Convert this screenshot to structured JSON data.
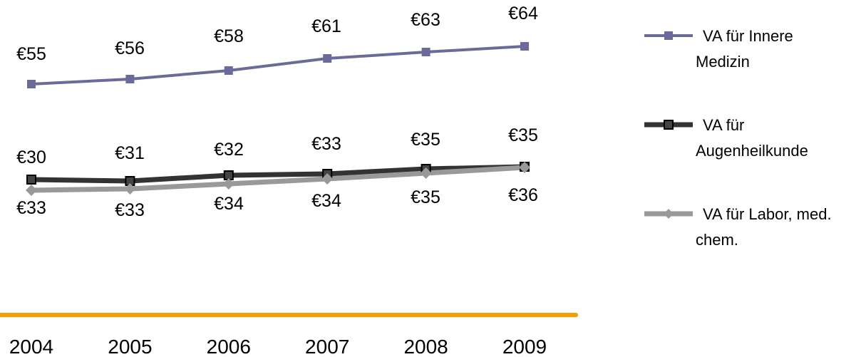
{
  "chart_data": {
    "type": "line",
    "title": "",
    "xlabel": "",
    "ylabel": "",
    "categories": [
      "2004",
      "2005",
      "2006",
      "2007",
      "2008",
      "2009"
    ],
    "currency_prefix": "€",
    "grid": false,
    "legend_position": "right",
    "ylim": [
      0,
      80
    ],
    "series": [
      {
        "name": "VA für Innere Medizin",
        "legend_lines": [
          "VA für Innere",
          "Medizin"
        ],
        "values": [
          55,
          56,
          58,
          61,
          63,
          64
        ],
        "labels": [
          "€55",
          "€56",
          "€58",
          "€61",
          "€63",
          "€64"
        ],
        "label_side": "above",
        "color": "#6B6B99",
        "marker": "square"
      },
      {
        "name": "VA für Augenheilkunde",
        "legend_lines": [
          "VA für",
          "Augenheilkunde"
        ],
        "values": [
          30,
          31,
          32,
          33,
          35,
          35
        ],
        "labels": [
          "€30",
          "€31",
          "€32",
          "€33",
          "€35",
          "€35"
        ],
        "label_side": "above",
        "color": "#333333",
        "marker": "square"
      },
      {
        "name": "VA für Labor, med. chem.",
        "legend_lines": [
          "VA für Labor, med.",
          "chem."
        ],
        "values": [
          33,
          33,
          34,
          34,
          35,
          36
        ],
        "labels": [
          "€33",
          "€33",
          "€34",
          "€34",
          "€35",
          "€36"
        ],
        "label_side": "below",
        "color": "#999999",
        "marker": "diamond"
      }
    ],
    "axis_color": "#F59C00"
  }
}
